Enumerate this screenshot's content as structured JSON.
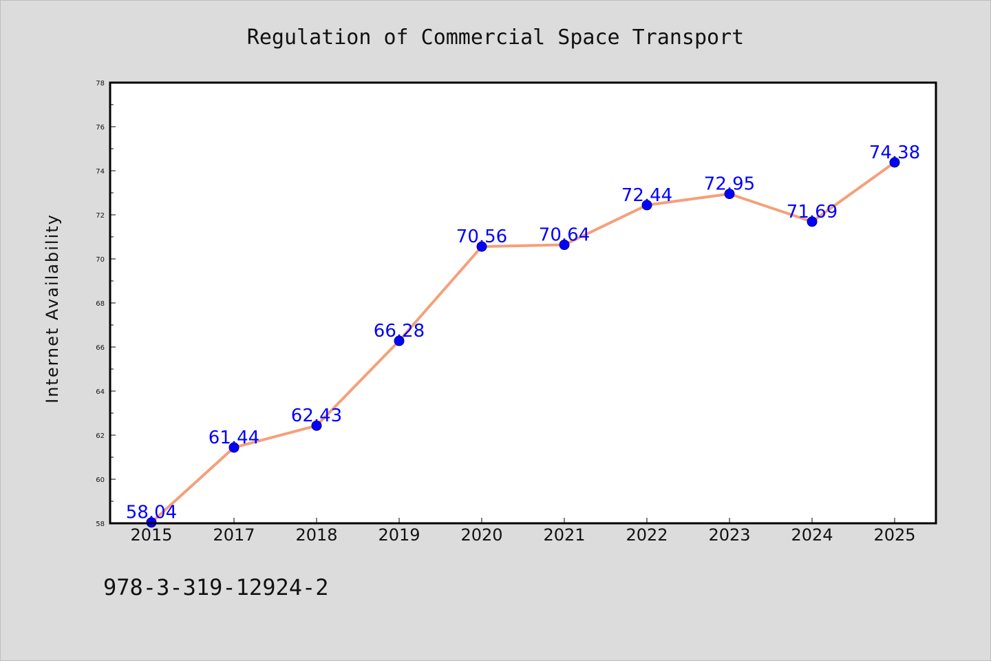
{
  "chart_data": {
    "type": "line",
    "title": "Regulation of Commercial Space Transport",
    "xlabel": "",
    "ylabel": "Internet Availability",
    "categories": [
      "2015",
      "2017",
      "2018",
      "2019",
      "2020",
      "2021",
      "2022",
      "2023",
      "2024",
      "2025"
    ],
    "series": [
      {
        "values": [
          58.04,
          61.44,
          62.43,
          66.28,
          70.56,
          70.64,
          72.44,
          72.95,
          71.69,
          74.38
        ],
        "labels": [
          "58.04",
          "61.44",
          "62.43",
          "66.28",
          "70.56",
          "70.64",
          "72.44",
          "72.95",
          "71.69",
          "74.38"
        ],
        "line_color": "#f4a07a",
        "marker_color": "#0000ff"
      }
    ],
    "ylim": [
      58,
      78
    ],
    "yticks": [
      58,
      60,
      62,
      64,
      66,
      68,
      70,
      72,
      74,
      76,
      78
    ],
    "grid": false,
    "legend": "none"
  },
  "footer": {
    "isbn": "978-3-319-12924-2"
  },
  "colors": {
    "background": "#dcdcdc",
    "plot_background": "#ffffff",
    "axis": "#000000"
  }
}
